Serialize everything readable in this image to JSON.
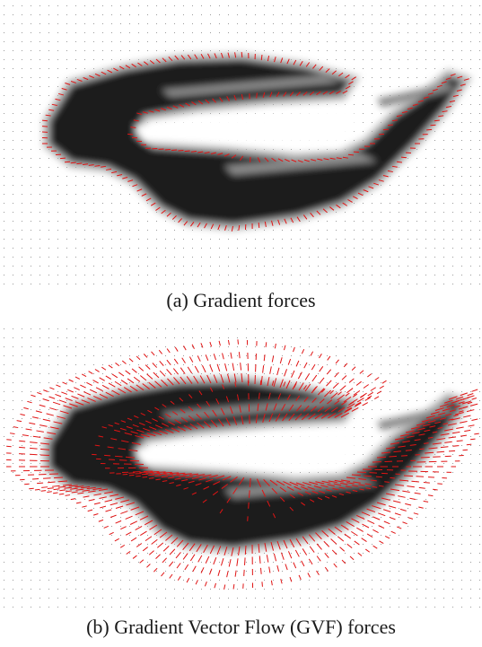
{
  "figure": {
    "panels": [
      {
        "id": "a",
        "caption": "(a) Gradient forces",
        "field_type": "gradient",
        "arrow_color": "#e01414"
      },
      {
        "id": "b",
        "caption": "(b) Gradient Vector Flow (GVF) forces",
        "field_type": "gvf",
        "arrow_color": "#e01414"
      }
    ]
  }
}
